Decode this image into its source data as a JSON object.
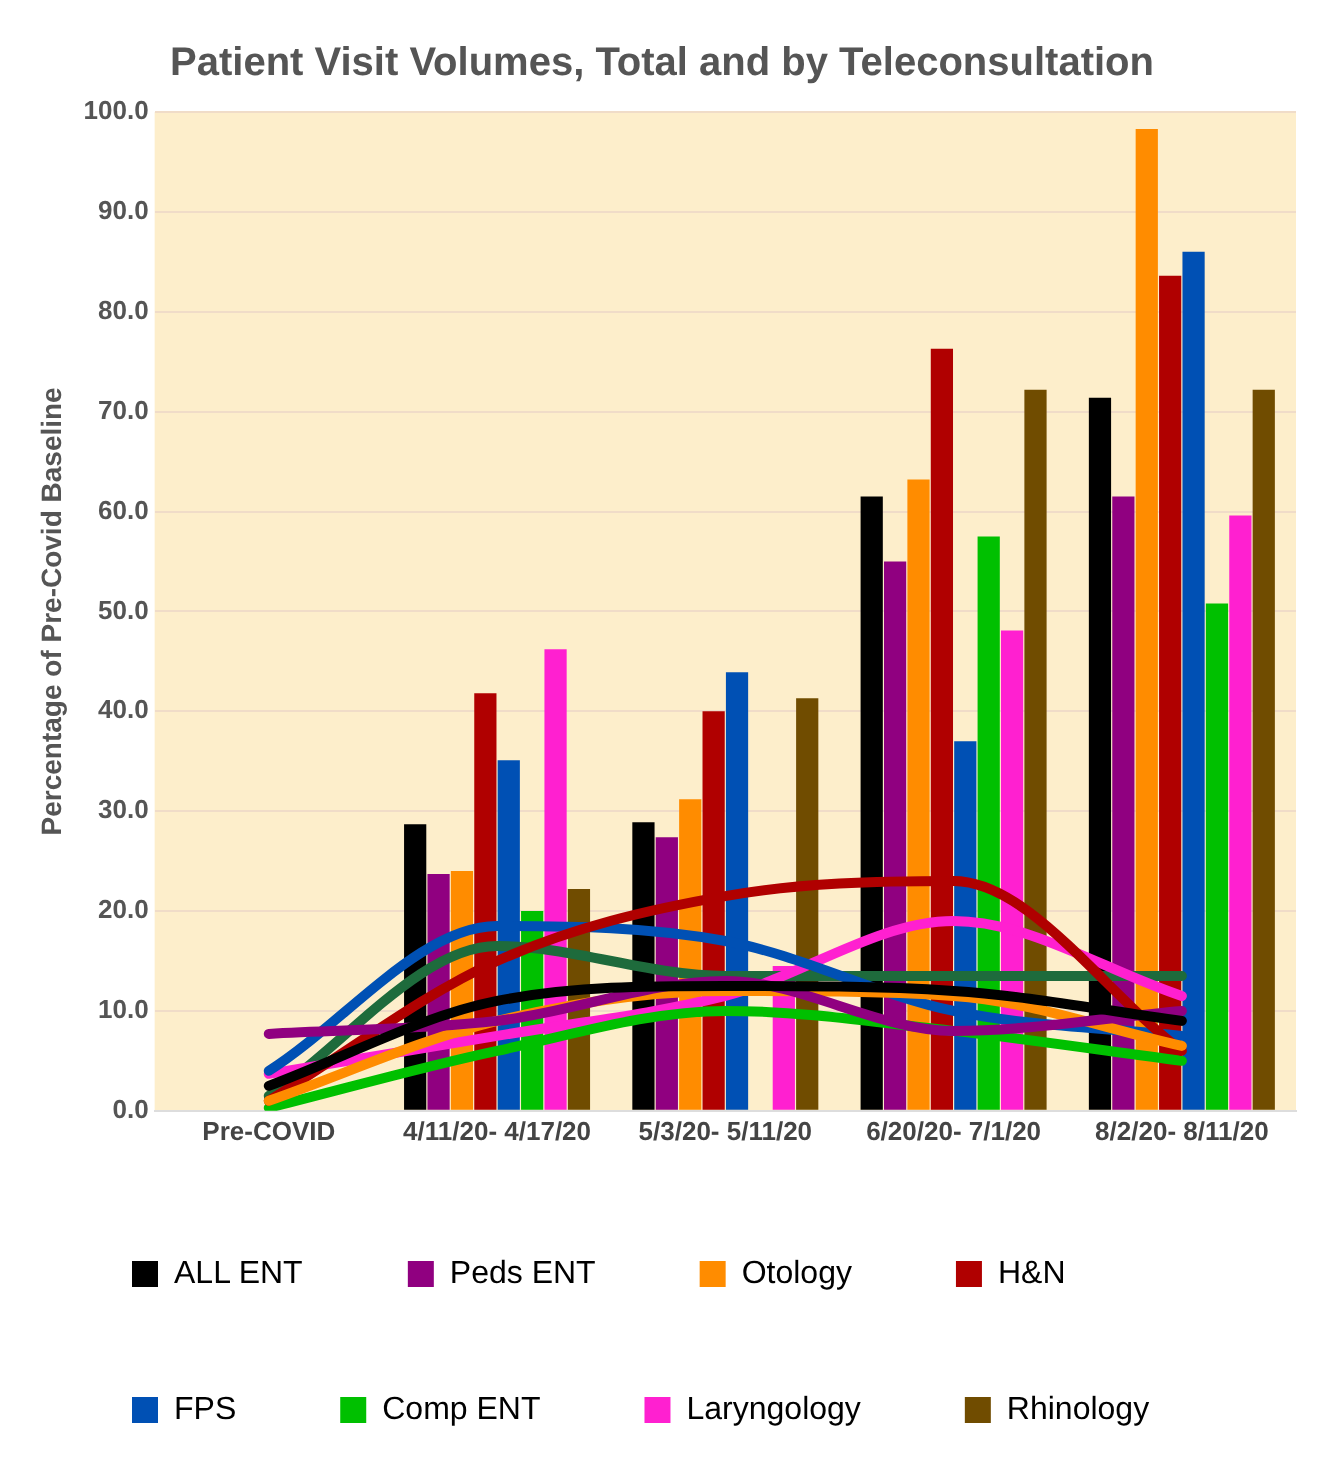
{
  "chart_data": {
    "type": "bar",
    "title": "Patient Visit Volumes, Total and by Teleconsultation",
    "ylabel": "Percentage of Pre-Covid Baseline",
    "categories": [
      "Pre-COVID",
      "4/11/20- 4/17/20",
      "5/3/20- 5/11/20",
      "6/20/20- 7/1/20",
      "8/2/20- 8/11/20"
    ],
    "series": [
      {
        "name": "ALL ENT",
        "color": "#000000",
        "values": [
          null,
          28.7,
          28.9,
          61.5,
          71.4
        ]
      },
      {
        "name": "Peds ENT",
        "color": "#900080",
        "values": [
          null,
          23.7,
          27.4,
          55.0,
          61.5
        ]
      },
      {
        "name": "Otology",
        "color": "#ff8c00",
        "values": [
          null,
          24.0,
          31.2,
          63.2,
          98.3
        ]
      },
      {
        "name": "H&N",
        "color": "#b00000",
        "values": [
          null,
          41.8,
          40.0,
          76.3,
          83.6
        ]
      },
      {
        "name": "FPS",
        "color": "#0050b4",
        "values": [
          null,
          35.1,
          43.9,
          37.0,
          86.0
        ]
      },
      {
        "name": "Comp ENT",
        "color": "#00c000",
        "values": [
          null,
          20.0,
          null,
          57.5,
          50.8
        ]
      },
      {
        "name": "Laryngology",
        "color": "#ff20d0",
        "values": [
          null,
          46.2,
          14.5,
          48.1,
          59.6
        ]
      },
      {
        "name": "Rhinology",
        "color": "#704c00",
        "values": [
          null,
          22.2,
          41.3,
          72.2,
          72.2
        ]
      },
      {
        "type": "line",
        "color": "#000000",
        "values": [
          2.5,
          11,
          12.5,
          12,
          9
        ]
      },
      {
        "type": "line",
        "color": "#900080",
        "values": [
          7.7,
          9,
          13,
          8,
          10
        ]
      },
      {
        "type": "line",
        "color": "#ff8c00",
        "values": [
          1,
          9,
          12,
          11.5,
          6.5
        ]
      },
      {
        "type": "line",
        "color": "#b00000",
        "values": [
          1,
          15,
          21.5,
          23,
          6
        ]
      },
      {
        "type": "line",
        "color": "#0050b4",
        "values": [
          4,
          18.5,
          17,
          10,
          7.5
        ]
      },
      {
        "type": "line",
        "color": "#00c000",
        "values": [
          0.3,
          6,
          10,
          8,
          5
        ]
      },
      {
        "type": "line",
        "color": "#ff20d0",
        "values": [
          3.7,
          7.5,
          11.5,
          19,
          11.5
        ]
      },
      {
        "type": "line",
        "color": "#1e6b3c",
        "values": [
          1.5,
          16.5,
          13.5,
          13.5,
          13.5
        ]
      }
    ],
    "ylim": [
      0,
      100
    ],
    "yticks": [
      {
        "value": 0,
        "label": "0.0"
      },
      {
        "value": 10,
        "label": "10.0"
      },
      {
        "value": 20,
        "label": "20.0"
      },
      {
        "value": 30,
        "label": "30.0"
      },
      {
        "value": 40,
        "label": "40.0"
      },
      {
        "value": 50,
        "label": "50.0"
      },
      {
        "value": 60,
        "label": "60.0"
      },
      {
        "value": 70,
        "label": "70.0"
      },
      {
        "value": 80,
        "label": "80.0"
      },
      {
        "value": 90,
        "label": "90.0"
      },
      {
        "value": 100,
        "label": "100.0"
      }
    ],
    "grid": "y",
    "legend": "bottom",
    "marker": "none",
    "line_style": "solid"
  }
}
